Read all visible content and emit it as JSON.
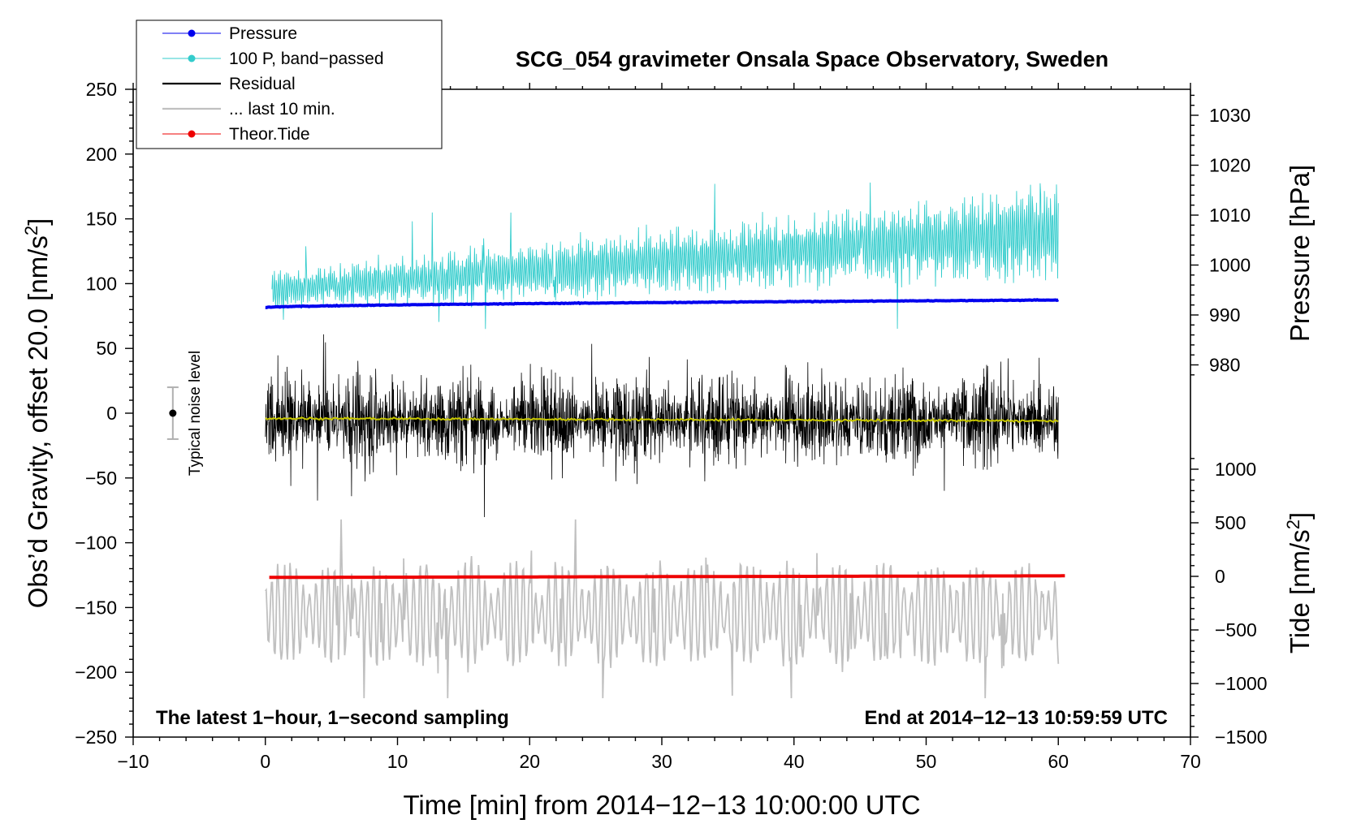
{
  "chart_data": {
    "type": "line",
    "title": "SCG_054 gravimeter Onsala Space Observatory, Sweden",
    "xlabel": "Time [min] from 2014−12−13 10:00:00 UTC",
    "ylabel_left_main": "Obs’d Gravity, offset 20.0 [nm/s",
    "ylabel_left_sup": "2",
    "ylabel_left_tail": "]",
    "ylabel_right_top": "Pressure [hPa]",
    "ylabel_right_bottom_main": "Tide [nm/s",
    "ylabel_right_bottom_sup": "2",
    "ylabel_right_bottom_tail": "]",
    "xlim": [
      -10,
      70
    ],
    "ylim_left": [
      -250,
      250
    ],
    "ylim_pressure": [
      970,
      1035
    ],
    "ylim_tide": [
      -1500,
      1500
    ],
    "x_ticks": [
      -10,
      0,
      10,
      20,
      30,
      40,
      50,
      60,
      70
    ],
    "x_tick_labels": [
      "−10",
      "0",
      "10",
      "20",
      "30",
      "40",
      "50",
      "60",
      "70"
    ],
    "left_ticks": [
      250,
      200,
      150,
      100,
      50,
      0,
      -50,
      -100,
      -150,
      -200,
      -250
    ],
    "left_tick_labels": [
      "250",
      "200",
      "150",
      "100",
      "50",
      "0",
      "−50",
      "−100",
      "−150",
      "−200",
      "−250"
    ],
    "pressure_ticks": [
      980,
      990,
      1000,
      1010,
      1020,
      1030
    ],
    "pressure_tick_labels": [
      "980",
      "990",
      "1000",
      "1010",
      "1020",
      "1030"
    ],
    "tide_ticks": [
      1000,
      500,
      0,
      -500,
      -1000,
      -1500
    ],
    "tide_tick_labels": [
      "1000",
      "500",
      "0",
      "−500",
      "−1000",
      "−1500"
    ],
    "annotation_left": "The latest 1−hour, 1−second sampling",
    "annotation_right": "End at 2014−12−13 10:59:59 UTC",
    "noise_label": "Typical noise level",
    "noise_bar": {
      "x": -7,
      "center": 0,
      "half_range": 20
    },
    "legend": [
      {
        "label": "Pressure",
        "color": "#0000ee",
        "marker": true
      },
      {
        "label": "100 P, band−passed",
        "color": "#33cccc",
        "marker": true
      },
      {
        "label": "Residual",
        "color": "#000000",
        "marker": false
      },
      {
        "label": "... last 10 min.",
        "color": "#c0c0c0",
        "marker": false
      },
      {
        "label": "Theor.Tide",
        "color": "#ee0000",
        "marker": true
      }
    ],
    "series": [
      {
        "name": "Pressure",
        "axis": "pressure",
        "color": "#0000ee",
        "x_start": 0,
        "x_end": 60,
        "y_start": 991.5,
        "y_end": 993.0,
        "noise": 0.15
      },
      {
        "name": "100 P, band−passed",
        "axis": "left",
        "color": "#33cccc",
        "x_start": 0.5,
        "x_end": 60,
        "base_start": 95,
        "base_end": 140,
        "amp_start": 12,
        "amp_end": 30,
        "min": 65,
        "max": 180
      },
      {
        "name": "Residual",
        "axis": "left",
        "color": "#000000",
        "x_start": 0,
        "x_end": 60,
        "base": -5,
        "amp": 38,
        "min": -97,
        "max": 80
      },
      {
        "name": "Residual smoothed",
        "axis": "left",
        "color": "#c8c800",
        "x_start": 0,
        "x_end": 60,
        "y_start": -4,
        "y_end": -6
      },
      {
        "name": "... last 10 min.",
        "axis": "left",
        "color": "#c0c0c0",
        "x_start": 0,
        "x_end": 60,
        "base": -155,
        "amp": 28,
        "min": -220,
        "max": -82
      },
      {
        "name": "Theor.Tide",
        "axis": "tide",
        "color": "#ee0000",
        "x_start": 0.3,
        "x_end": 60.5,
        "y_start": -10,
        "y_end": 5
      }
    ]
  }
}
